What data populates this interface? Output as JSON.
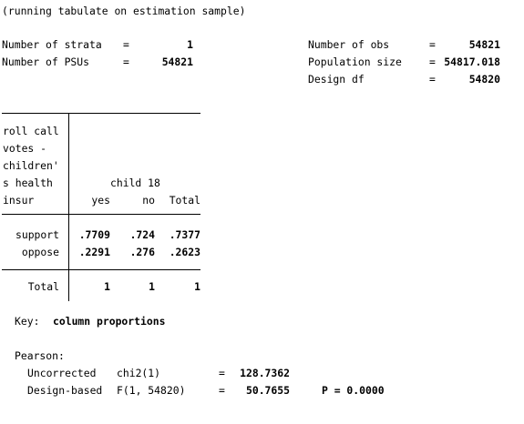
{
  "intro": "(running tabulate on estimation sample)",
  "header": {
    "left": [
      {
        "label": "Number of strata",
        "eq": "=",
        "value": "1"
      },
      {
        "label": "Number of PSUs",
        "eq": "=",
        "value": "54821"
      }
    ],
    "right": [
      {
        "label": "Number of obs",
        "eq": "=",
        "value": "54821"
      },
      {
        "label": "Population size",
        "eq": "=",
        "value": "54817.018"
      },
      {
        "label": "Design df",
        "eq": "=",
        "value": "54820"
      }
    ]
  },
  "table": {
    "row_var_lines": [
      "roll call",
      "votes -",
      "children'",
      "s health",
      "insur"
    ],
    "col_var": "child 18",
    "col_headers": [
      "yes",
      "no",
      "Total"
    ],
    "rows": [
      {
        "label": "support",
        "cells": [
          ".7709",
          ".724",
          ".7377"
        ]
      },
      {
        "label": "oppose",
        "cells": [
          ".2291",
          ".276",
          ".2623"
        ]
      }
    ],
    "total": {
      "label": "Total",
      "cells": [
        "1",
        "1",
        "1"
      ]
    }
  },
  "key": {
    "label": "Key:",
    "value": "column proportions"
  },
  "pearson": {
    "title": "Pearson:",
    "rows": [
      {
        "label": "Uncorrected",
        "stat": "chi2(1)",
        "eq": "=",
        "value": "128.7362",
        "p": ""
      },
      {
        "label": "Design-based",
        "stat": "F(1, 54820)",
        "eq": "=",
        "value": "50.7655",
        "p": "P = 0.0000"
      }
    ]
  }
}
